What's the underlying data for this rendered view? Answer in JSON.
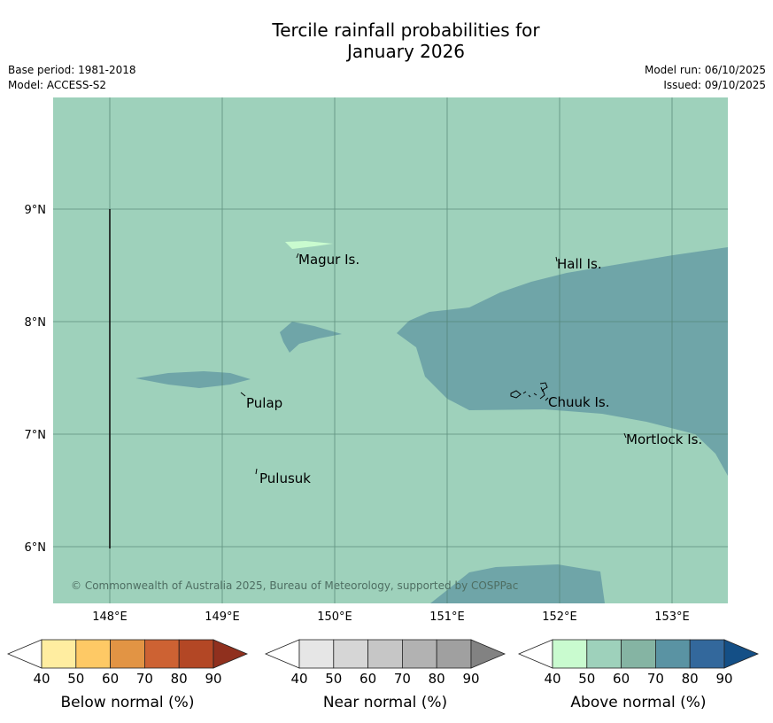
{
  "title_line1": "Tercile rainfall probabilities for",
  "title_line2": "January 2026",
  "base_period": "Base period: 1981-2018",
  "model": "Model: ACCESS-S2",
  "model_run": "Model run: 06/10/2025",
  "issued": "Issued: 09/10/2025",
  "copyright": "© Commonwealth of Australia 2025, Bureau of Meteorology, supported by COSPPac",
  "colors": {
    "background_above_50": "#9ed1bb",
    "above_60_70": "#6fa5a8",
    "above_40_50": "#c9fbcf",
    "grid": "#4f7f6f"
  },
  "map": {
    "lon_ticks": [
      "148°E",
      "149°E",
      "150°E",
      "151°E",
      "152°E",
      "153°E"
    ],
    "lat_ticks": [
      "9°N",
      "8°N",
      "7°N",
      "6°N"
    ],
    "places": [
      {
        "name": "Magur Is."
      },
      {
        "name": "Hall Is."
      },
      {
        "name": "Pulap"
      },
      {
        "name": "Chuuk Is."
      },
      {
        "name": "Mortlock Is."
      },
      {
        "name": "Pulusuk"
      }
    ]
  },
  "legends": [
    {
      "label": "Below normal (%)",
      "ticks": [
        "40",
        "50",
        "60",
        "70",
        "80",
        "90"
      ],
      "colors": [
        "#ffffff",
        "#ffeda0",
        "#fec965",
        "#e29444",
        "#cd6233",
        "#b34725",
        "#90301e"
      ]
    },
    {
      "label": "Near normal (%)",
      "ticks": [
        "40",
        "50",
        "60",
        "70",
        "80",
        "90"
      ],
      "colors": [
        "#ffffff",
        "#e6e6e6",
        "#d6d6d6",
        "#c6c6c6",
        "#b2b2b2",
        "#a0a0a0",
        "#828282"
      ]
    },
    {
      "label": "Above normal (%)",
      "ticks": [
        "40",
        "50",
        "60",
        "70",
        "80",
        "90"
      ],
      "colors": [
        "#ffffff",
        "#c9fbcf",
        "#9ed1bb",
        "#85b4a3",
        "#5a93a3",
        "#33689c",
        "#144f86"
      ]
    }
  ]
}
